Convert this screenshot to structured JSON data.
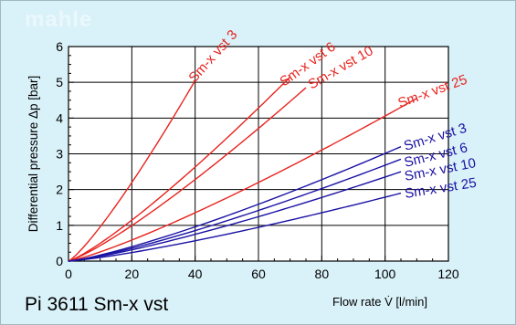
{
  "chart_data": {
    "type": "line",
    "title": "Pi 3611 Sm-x vst",
    "watermark": "mahle",
    "xlabel": "Flow rate V̇ [l/min]",
    "ylabel": "Differential pressure Δp [bar]",
    "xlim": [
      0,
      120
    ],
    "ylim": [
      0,
      6
    ],
    "xticks": [
      0,
      20,
      40,
      60,
      80,
      100,
      120
    ],
    "yticks": [
      0,
      1,
      2,
      3,
      4,
      5,
      6
    ],
    "grid": true,
    "colors": {
      "red": "#e8231e",
      "blue": "#1a12a4",
      "background": "#d9f1f8",
      "plot": "#ffffff"
    },
    "series": [
      {
        "name": "Sm-x vst 3",
        "color": "#e8231e",
        "exponent": 1.2,
        "x": [
          0,
          10,
          20,
          30,
          40
        ],
        "y": [
          0,
          0.95,
          2.2,
          3.6,
          5.05
        ]
      },
      {
        "name": "Sm-x vst 6",
        "color": "#e8231e",
        "exponent": 1.2,
        "x": [
          0,
          20,
          40,
          60,
          70
        ],
        "y": [
          0,
          1.15,
          2.6,
          4.3,
          5.15
        ]
      },
      {
        "name": "Sm-x vst 10",
        "color": "#e8231e",
        "exponent": 1.2,
        "x": [
          0,
          20,
          40,
          60,
          75
        ],
        "y": [
          0,
          1.0,
          2.3,
          3.75,
          4.85
        ]
      },
      {
        "name": "Sm-x vst 25",
        "color": "#e8231e",
        "exponent": 1.2,
        "x": [
          0,
          40,
          80,
          100,
          110
        ],
        "y": [
          0,
          1.4,
          3.15,
          4.1,
          4.55
        ]
      },
      {
        "name": "Sm-x vst 3",
        "color": "#1a12a4",
        "exponent": 1.25,
        "x": [
          0,
          40,
          80,
          100,
          105
        ],
        "y": [
          0,
          0.95,
          2.3,
          3.0,
          3.2
        ]
      },
      {
        "name": "Sm-x vst 6",
        "color": "#1a12a4",
        "exponent": 1.25,
        "x": [
          0,
          40,
          80,
          100,
          105
        ],
        "y": [
          0,
          0.85,
          2.05,
          2.7,
          2.85
        ]
      },
      {
        "name": "Sm-x vst 10",
        "color": "#1a12a4",
        "exponent": 1.25,
        "x": [
          0,
          40,
          80,
          100,
          105
        ],
        "y": [
          0,
          0.75,
          1.8,
          2.35,
          2.5
        ]
      },
      {
        "name": "Sm-x vst 25",
        "color": "#1a12a4",
        "exponent": 1.25,
        "x": [
          0,
          40,
          80,
          100,
          105
        ],
        "y": [
          0,
          0.55,
          1.35,
          1.8,
          1.9
        ]
      }
    ]
  }
}
